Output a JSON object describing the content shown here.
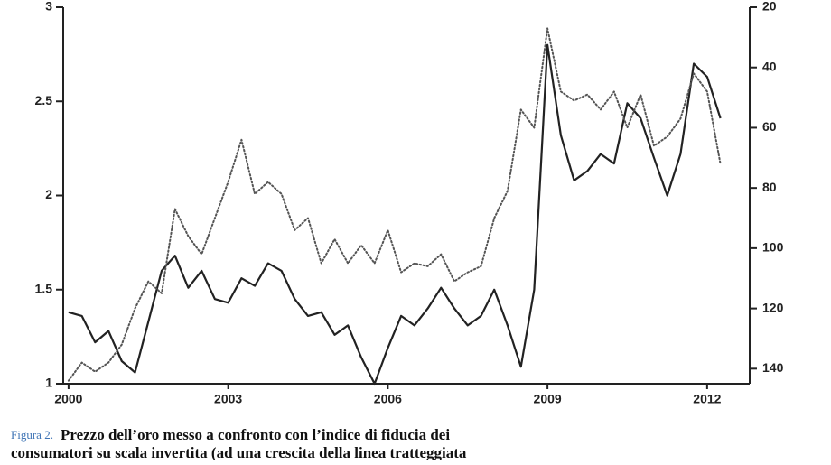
{
  "chart_data": {
    "type": "line",
    "x": [
      2000,
      2000.25,
      2000.5,
      2000.75,
      2001,
      2001.25,
      2001.5,
      2001.75,
      2002,
      2002.25,
      2002.5,
      2002.75,
      2003,
      2003.25,
      2003.5,
      2003.75,
      2004,
      2004.25,
      2004.5,
      2004.75,
      2005,
      2005.25,
      2005.5,
      2005.75,
      2006,
      2006.25,
      2006.5,
      2006.75,
      2007,
      2007.25,
      2007.5,
      2007.75,
      2008,
      2008.25,
      2008.5,
      2008.75,
      2009,
      2009.25,
      2009.5,
      2009.75,
      2010,
      2010.25,
      2010.5,
      2010.75,
      2011,
      2011.25,
      2011.5,
      2011.75,
      2012,
      2012.25
    ],
    "xlim": [
      1999.9,
      2012.8
    ],
    "xticks": [
      2000,
      2003,
      2006,
      2009,
      2012
    ],
    "ylim": [
      1,
      3
    ],
    "yticks": [
      1,
      1.5,
      2,
      2.5,
      3
    ],
    "y2lim": [
      145,
      20
    ],
    "y2ticks": [
      20,
      40,
      60,
      80,
      100,
      120,
      140
    ],
    "series": [
      {
        "color": "#222222",
        "style": "solid",
        "values": [
          1.38,
          1.36,
          1.22,
          1.28,
          1.12,
          1.06,
          1.33,
          1.6,
          1.68,
          1.51,
          1.6,
          1.45,
          1.43,
          1.56,
          1.52,
          1.64,
          1.6,
          1.45,
          1.36,
          1.38,
          1.26,
          1.31,
          1.14,
          1.0,
          1.19,
          1.36,
          1.31,
          1.4,
          1.51,
          1.4,
          1.31,
          1.36,
          1.5,
          1.31,
          1.09,
          1.5,
          2.8,
          2.32,
          2.08,
          2.13,
          2.22,
          2.17,
          2.49,
          2.41,
          2.2,
          2.0,
          2.22,
          2.7,
          2.63,
          2.41
        ]
      },
      {
        "color": "#555555",
        "style": "dotted",
        "axis": "y2",
        "values": [
          144,
          138,
          141,
          138,
          132,
          120,
          111,
          115,
          87,
          96,
          102,
          90,
          78,
          64,
          82,
          78,
          82,
          94,
          90,
          105,
          97,
          105,
          99,
          105,
          94,
          108,
          105,
          106,
          102,
          111,
          108,
          106,
          90,
          81,
          54,
          60,
          27,
          48,
          51,
          49,
          54,
          48,
          60,
          49,
          66,
          63,
          57,
          42,
          48,
          72
        ]
      }
    ]
  },
  "caption": {
    "label": "Figura 2.",
    "lines": [
      "Prezzo dell’oro messo a confronto con l’indice di fiducia dei",
      "consumatori su scala invertita (ad una crescita della linea tratteggiata"
    ]
  }
}
